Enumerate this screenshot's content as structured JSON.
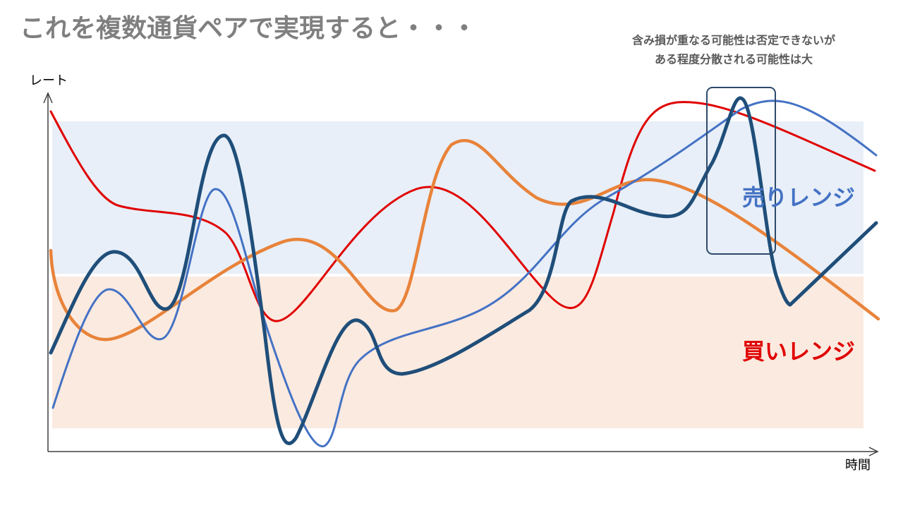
{
  "header": {
    "title": "これを複数通貨ペアで実現すると・・・"
  },
  "annotation": {
    "lines": [
      "含み損が重なる可能性は否定できないが",
      "ある程度分散される可能性は大"
    ]
  },
  "axes": {
    "y_label": "レート",
    "x_label": "時間"
  },
  "ranges": {
    "sell": "売りレンジ",
    "buy": "買いレンジ"
  }
}
